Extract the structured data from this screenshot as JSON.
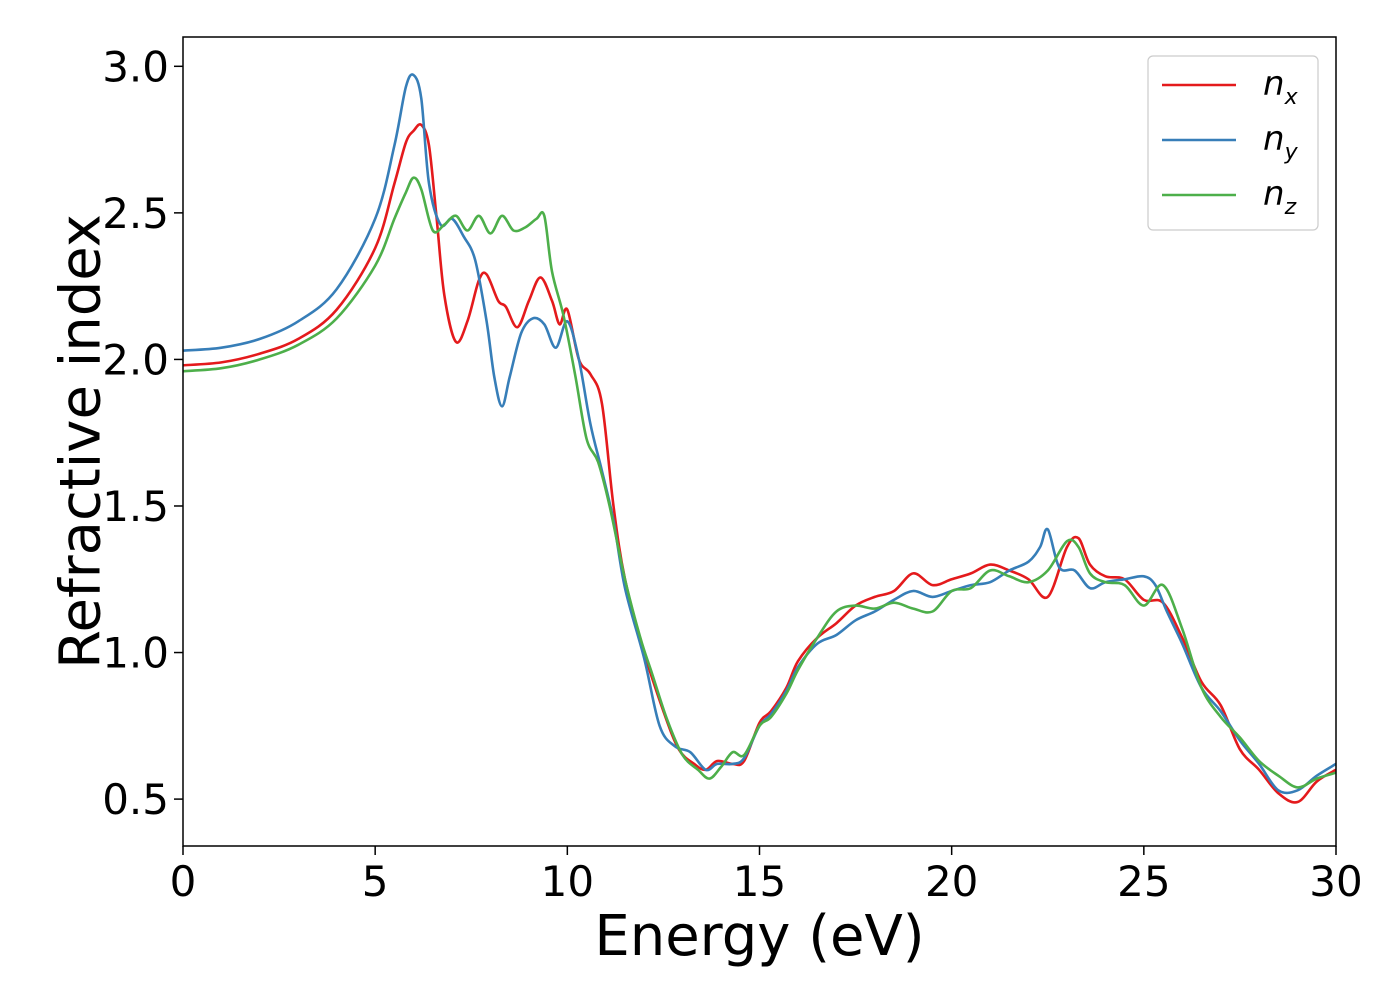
{
  "chart_data": {
    "type": "line",
    "title": "",
    "xlabel": "Energy (eV)",
    "ylabel": "Refractive index",
    "xlim": [
      0,
      30
    ],
    "ylim": [
      0.34,
      3.1
    ],
    "xticks": [
      "0",
      "5",
      "10",
      "15",
      "20",
      "25",
      "30"
    ],
    "yticks": [
      "0.5",
      "1.0",
      "1.5",
      "2.0",
      "2.5",
      "3.0"
    ],
    "grid": false,
    "legend_position": "top-right",
    "series": [
      {
        "name": "n_x",
        "label_base": "n",
        "label_sub": "x",
        "color": "#e41a1c",
        "points": [
          [
            0,
            1.98
          ],
          [
            1,
            1.99
          ],
          [
            2,
            2.02
          ],
          [
            3,
            2.07
          ],
          [
            4,
            2.17
          ],
          [
            5,
            2.38
          ],
          [
            5.5,
            2.6
          ],
          [
            5.8,
            2.74
          ],
          [
            6.0,
            2.78
          ],
          [
            6.2,
            2.8
          ],
          [
            6.4,
            2.73
          ],
          [
            6.6,
            2.48
          ],
          [
            6.8,
            2.22
          ],
          [
            7.1,
            2.06
          ],
          [
            7.4,
            2.13
          ],
          [
            7.7,
            2.27
          ],
          [
            7.9,
            2.29
          ],
          [
            8.2,
            2.2
          ],
          [
            8.4,
            2.18
          ],
          [
            8.7,
            2.11
          ],
          [
            9.0,
            2.2
          ],
          [
            9.3,
            2.28
          ],
          [
            9.6,
            2.2
          ],
          [
            9.8,
            2.12
          ],
          [
            10.0,
            2.17
          ],
          [
            10.3,
            2.0
          ],
          [
            10.6,
            1.95
          ],
          [
            10.9,
            1.85
          ],
          [
            11.2,
            1.5
          ],
          [
            11.5,
            1.25
          ],
          [
            12.0,
            1.0
          ],
          [
            12.5,
            0.8
          ],
          [
            12.9,
            0.67
          ],
          [
            13.3,
            0.62
          ],
          [
            13.6,
            0.6
          ],
          [
            13.9,
            0.63
          ],
          [
            14.3,
            0.62
          ],
          [
            14.6,
            0.63
          ],
          [
            15.0,
            0.76
          ],
          [
            15.3,
            0.8
          ],
          [
            15.7,
            0.88
          ],
          [
            16.0,
            0.97
          ],
          [
            16.5,
            1.05
          ],
          [
            17.0,
            1.1
          ],
          [
            17.5,
            1.16
          ],
          [
            18.0,
            1.19
          ],
          [
            18.5,
            1.21
          ],
          [
            19.0,
            1.27
          ],
          [
            19.5,
            1.23
          ],
          [
            20.0,
            1.25
          ],
          [
            20.5,
            1.27
          ],
          [
            21.0,
            1.3
          ],
          [
            21.5,
            1.28
          ],
          [
            22.0,
            1.25
          ],
          [
            22.5,
            1.19
          ],
          [
            23.0,
            1.36
          ],
          [
            23.3,
            1.39
          ],
          [
            23.6,
            1.3
          ],
          [
            24.0,
            1.26
          ],
          [
            24.5,
            1.25
          ],
          [
            25.0,
            1.18
          ],
          [
            25.5,
            1.17
          ],
          [
            26.0,
            1.05
          ],
          [
            26.5,
            0.9
          ],
          [
            27.0,
            0.82
          ],
          [
            27.5,
            0.67
          ],
          [
            28.0,
            0.6
          ],
          [
            28.5,
            0.52
          ],
          [
            29.0,
            0.49
          ],
          [
            29.5,
            0.56
          ],
          [
            30.0,
            0.6
          ]
        ]
      },
      {
        "name": "n_y",
        "label_base": "n",
        "label_sub": "y",
        "color": "#377eb8",
        "points": [
          [
            0,
            2.03
          ],
          [
            1,
            2.04
          ],
          [
            2,
            2.07
          ],
          [
            3,
            2.13
          ],
          [
            4,
            2.24
          ],
          [
            5,
            2.48
          ],
          [
            5.5,
            2.73
          ],
          [
            5.8,
            2.93
          ],
          [
            6.0,
            2.97
          ],
          [
            6.2,
            2.89
          ],
          [
            6.4,
            2.6
          ],
          [
            6.7,
            2.46
          ],
          [
            7.0,
            2.48
          ],
          [
            7.3,
            2.42
          ],
          [
            7.6,
            2.34
          ],
          [
            7.9,
            2.13
          ],
          [
            8.1,
            1.94
          ],
          [
            8.3,
            1.84
          ],
          [
            8.5,
            1.94
          ],
          [
            8.8,
            2.09
          ],
          [
            9.1,
            2.14
          ],
          [
            9.4,
            2.12
          ],
          [
            9.7,
            2.04
          ],
          [
            10.0,
            2.13
          ],
          [
            10.3,
            2.0
          ],
          [
            10.6,
            1.78
          ],
          [
            10.9,
            1.62
          ],
          [
            11.2,
            1.45
          ],
          [
            11.5,
            1.22
          ],
          [
            12.0,
            0.98
          ],
          [
            12.4,
            0.75
          ],
          [
            12.8,
            0.68
          ],
          [
            13.2,
            0.66
          ],
          [
            13.6,
            0.6
          ],
          [
            13.9,
            0.62
          ],
          [
            14.3,
            0.62
          ],
          [
            14.6,
            0.64
          ],
          [
            15.0,
            0.75
          ],
          [
            15.3,
            0.79
          ],
          [
            15.7,
            0.87
          ],
          [
            16.0,
            0.95
          ],
          [
            16.5,
            1.03
          ],
          [
            17.0,
            1.06
          ],
          [
            17.5,
            1.11
          ],
          [
            18.0,
            1.14
          ],
          [
            18.5,
            1.18
          ],
          [
            19.0,
            1.21
          ],
          [
            19.5,
            1.19
          ],
          [
            20.0,
            1.21
          ],
          [
            20.5,
            1.23
          ],
          [
            21.0,
            1.24
          ],
          [
            21.5,
            1.28
          ],
          [
            22.0,
            1.31
          ],
          [
            22.3,
            1.36
          ],
          [
            22.5,
            1.42
          ],
          [
            22.8,
            1.29
          ],
          [
            23.2,
            1.28
          ],
          [
            23.6,
            1.22
          ],
          [
            24.0,
            1.24
          ],
          [
            24.5,
            1.25
          ],
          [
            25.0,
            1.26
          ],
          [
            25.3,
            1.23
          ],
          [
            25.6,
            1.14
          ],
          [
            26.0,
            1.03
          ],
          [
            26.5,
            0.88
          ],
          [
            27.0,
            0.8
          ],
          [
            27.5,
            0.7
          ],
          [
            28.0,
            0.62
          ],
          [
            28.5,
            0.53
          ],
          [
            29.0,
            0.53
          ],
          [
            29.5,
            0.58
          ],
          [
            30.0,
            0.62
          ]
        ]
      },
      {
        "name": "n_z",
        "label_base": "n",
        "label_sub": "z",
        "color": "#4daf4a",
        "points": [
          [
            0,
            1.96
          ],
          [
            1,
            1.97
          ],
          [
            2,
            2.0
          ],
          [
            3,
            2.05
          ],
          [
            4,
            2.14
          ],
          [
            5,
            2.32
          ],
          [
            5.5,
            2.48
          ],
          [
            5.8,
            2.57
          ],
          [
            6.0,
            2.62
          ],
          [
            6.2,
            2.58
          ],
          [
            6.5,
            2.44
          ],
          [
            6.8,
            2.46
          ],
          [
            7.1,
            2.49
          ],
          [
            7.4,
            2.44
          ],
          [
            7.7,
            2.49
          ],
          [
            8.0,
            2.43
          ],
          [
            8.3,
            2.49
          ],
          [
            8.6,
            2.44
          ],
          [
            8.9,
            2.45
          ],
          [
            9.2,
            2.48
          ],
          [
            9.4,
            2.49
          ],
          [
            9.6,
            2.3
          ],
          [
            9.9,
            2.15
          ],
          [
            10.2,
            1.95
          ],
          [
            10.5,
            1.73
          ],
          [
            10.8,
            1.65
          ],
          [
            11.1,
            1.5
          ],
          [
            11.5,
            1.25
          ],
          [
            11.9,
            1.05
          ],
          [
            12.2,
            0.93
          ],
          [
            12.6,
            0.77
          ],
          [
            13.0,
            0.65
          ],
          [
            13.4,
            0.6
          ],
          [
            13.7,
            0.57
          ],
          [
            14.0,
            0.61
          ],
          [
            14.3,
            0.66
          ],
          [
            14.6,
            0.65
          ],
          [
            15.0,
            0.75
          ],
          [
            15.3,
            0.78
          ],
          [
            15.7,
            0.86
          ],
          [
            16.0,
            0.94
          ],
          [
            16.5,
            1.05
          ],
          [
            17.0,
            1.14
          ],
          [
            17.5,
            1.16
          ],
          [
            18.0,
            1.15
          ],
          [
            18.5,
            1.17
          ],
          [
            19.0,
            1.15
          ],
          [
            19.5,
            1.14
          ],
          [
            20.0,
            1.21
          ],
          [
            20.5,
            1.22
          ],
          [
            21.0,
            1.28
          ],
          [
            21.5,
            1.26
          ],
          [
            22.0,
            1.24
          ],
          [
            22.5,
            1.28
          ],
          [
            23.0,
            1.38
          ],
          [
            23.3,
            1.36
          ],
          [
            23.6,
            1.27
          ],
          [
            24.0,
            1.24
          ],
          [
            24.5,
            1.23
          ],
          [
            25.0,
            1.16
          ],
          [
            25.5,
            1.23
          ],
          [
            26.0,
            1.08
          ],
          [
            26.5,
            0.88
          ],
          [
            27.0,
            0.78
          ],
          [
            27.5,
            0.71
          ],
          [
            28.0,
            0.63
          ],
          [
            28.5,
            0.58
          ],
          [
            29.0,
            0.54
          ],
          [
            29.5,
            0.57
          ],
          [
            30.0,
            0.59
          ]
        ]
      }
    ]
  }
}
